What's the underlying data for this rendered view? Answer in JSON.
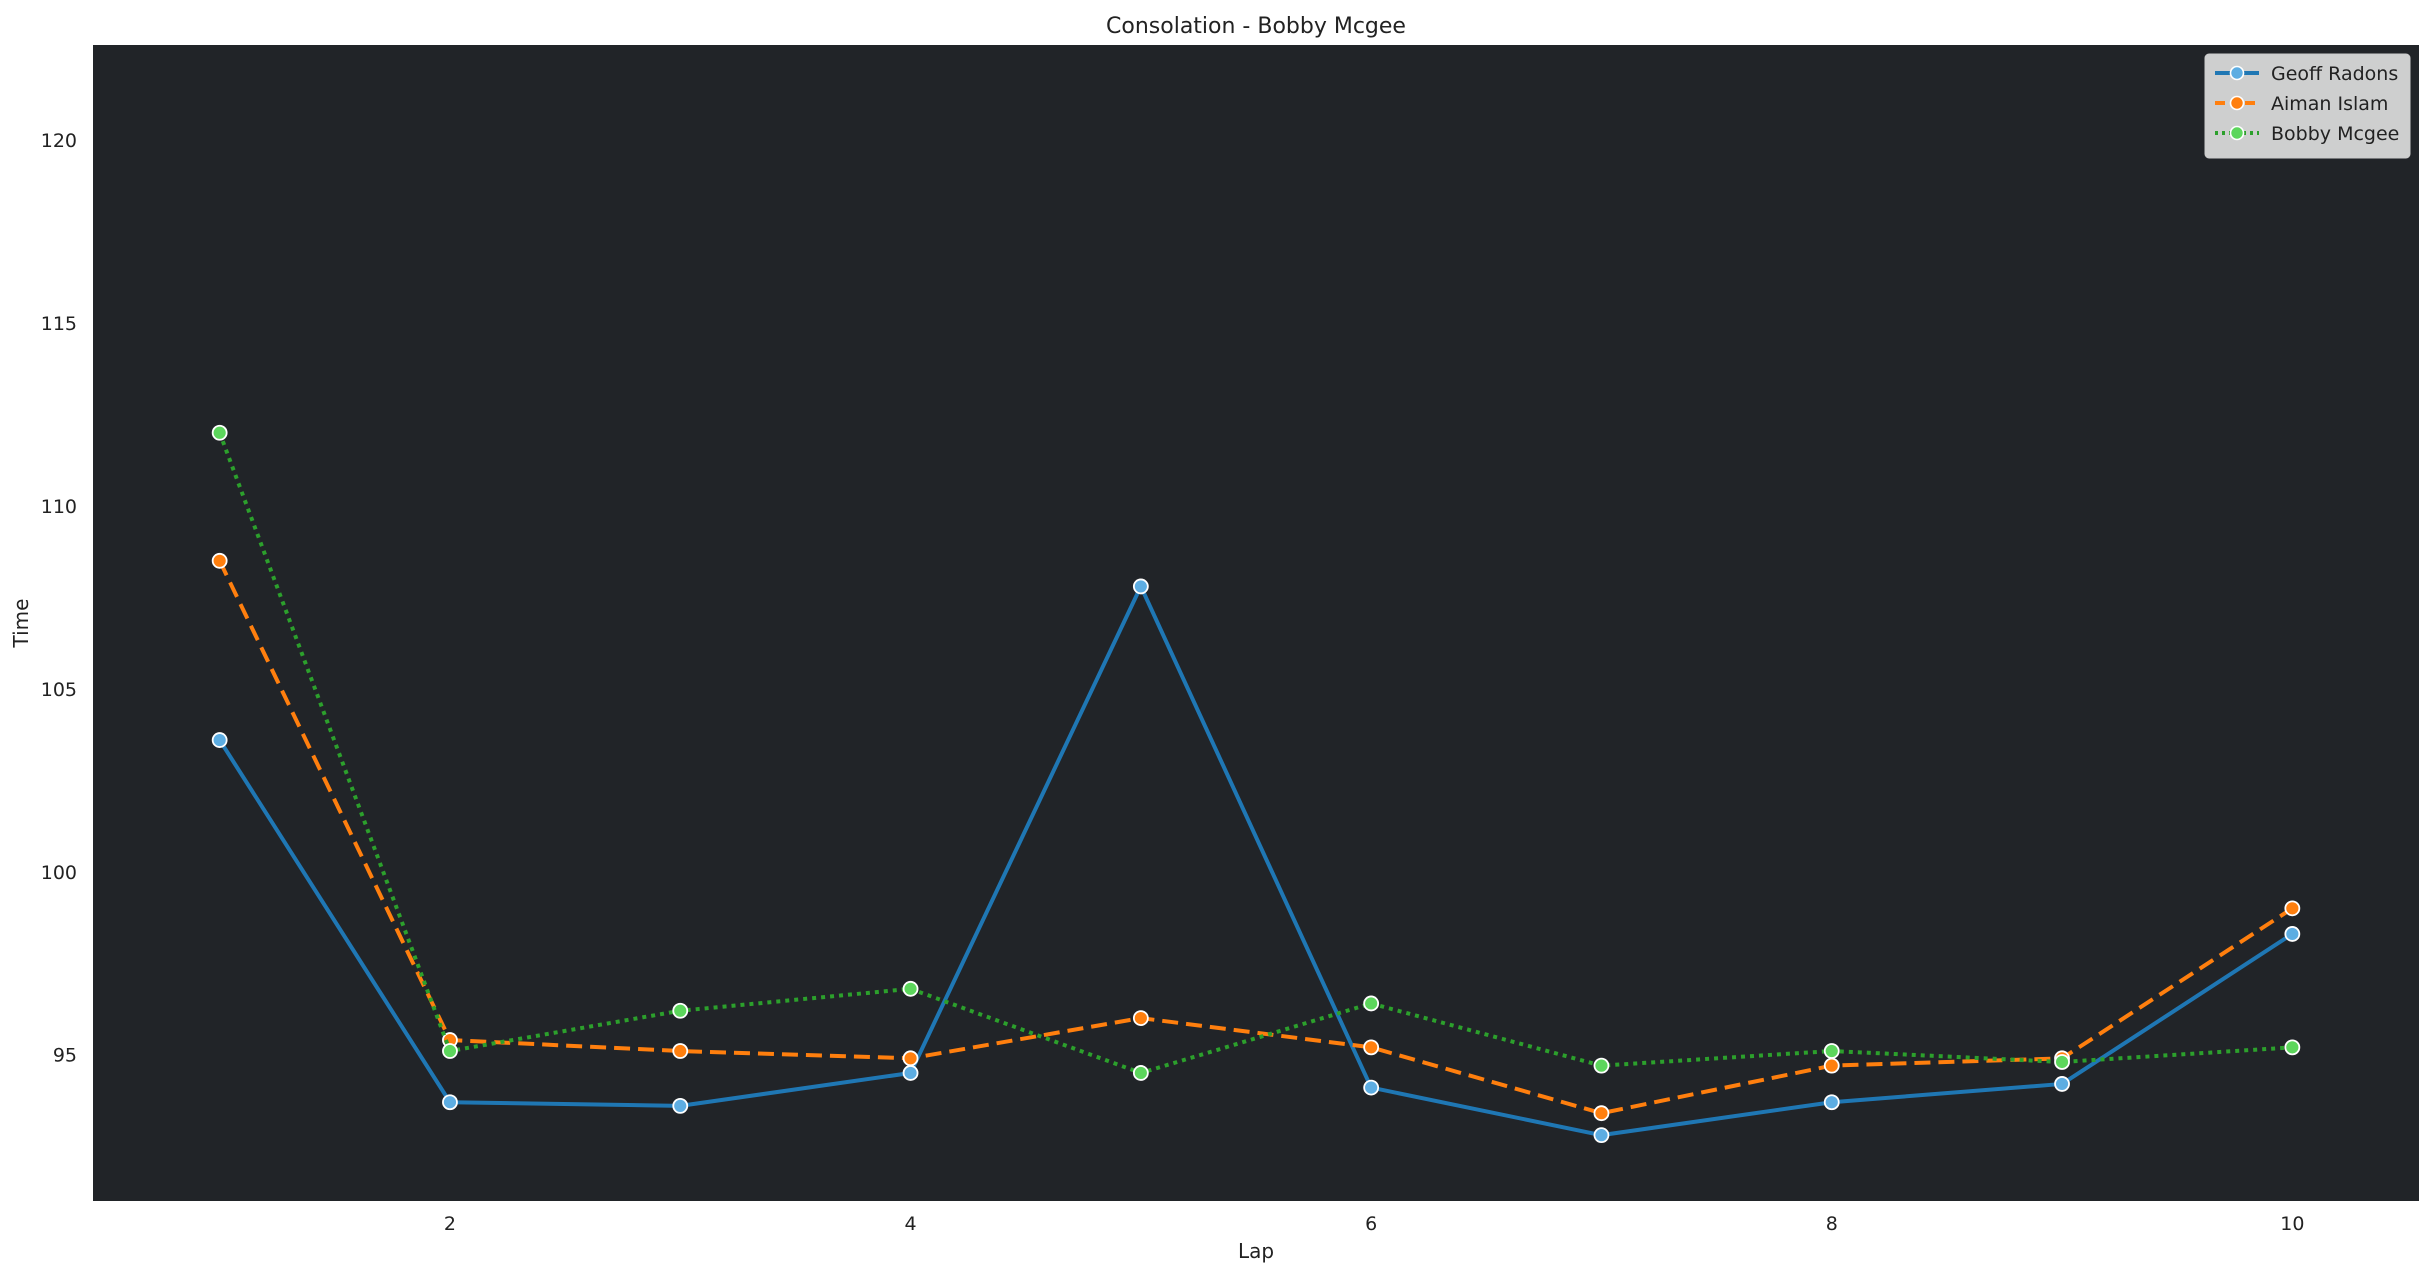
{
  "chart_data": {
    "type": "line",
    "title": "Consolation - Bobby Mcgee",
    "xlabel": "Lap",
    "ylabel": "Time",
    "x": [
      1,
      2,
      3,
      4,
      5,
      6,
      7,
      8,
      9,
      10
    ],
    "xlim": [
      0.45,
      10.55
    ],
    "ylim": [
      91.0,
      122.6
    ],
    "xticks": [
      2,
      4,
      6,
      8,
      10
    ],
    "yticks": [
      95,
      100,
      105,
      110,
      115,
      120
    ],
    "grid": false,
    "legend_position": "top-right",
    "plot_background": "#212428",
    "series": [
      {
        "name": "Geoff Radons",
        "color": "#1f77b4",
        "marker_fill": "#5dade2",
        "line_style": "solid",
        "values": [
          103.6,
          93.7,
          93.6,
          94.5,
          107.8,
          94.1,
          92.8,
          93.7,
          94.2,
          98.3
        ]
      },
      {
        "name": "Aiman Islam",
        "color": "#ff7f0e",
        "marker_fill": "#ff7f0e",
        "line_style": "dashed",
        "values": [
          108.5,
          95.4,
          95.1,
          94.9,
          96.0,
          95.2,
          93.4,
          94.7,
          94.9,
          99.0
        ]
      },
      {
        "name": "Bobby Mcgee",
        "color": "#2ca02c",
        "marker_fill": "#5cd65c",
        "line_style": "dotted",
        "values": [
          112.0,
          95.1,
          96.2,
          96.8,
          94.5,
          96.4,
          94.7,
          95.1,
          94.8,
          95.2
        ]
      }
    ]
  }
}
